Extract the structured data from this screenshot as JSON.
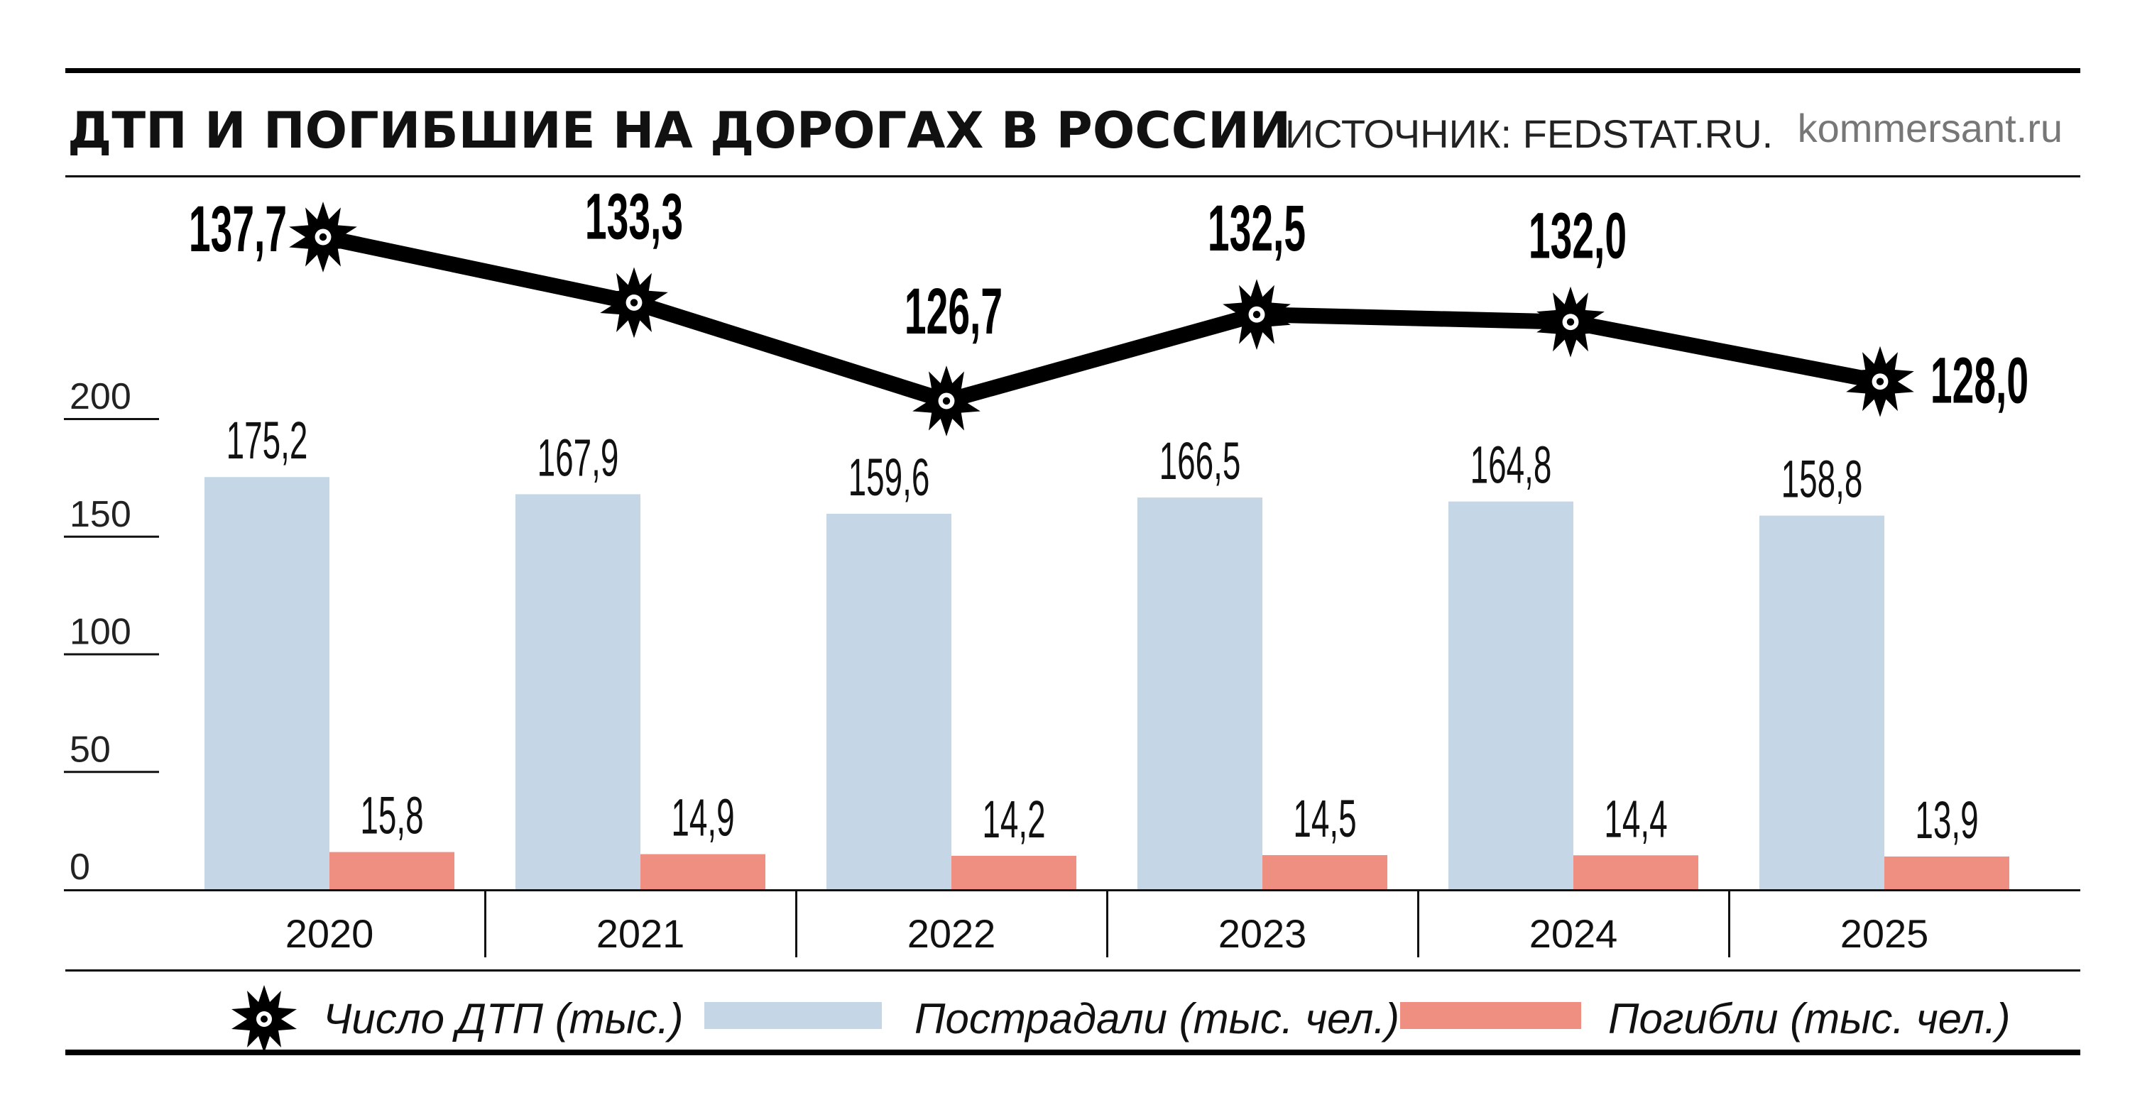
{
  "header": {
    "title": "ДТП И ПОГИБШИЕ НА ДОРОГАХ В РОССИИ",
    "source": "ИСТОЧНИК: FEDSTAT.RU.",
    "brand": "kommersant.ru"
  },
  "colors": {
    "injured": "#c5d7e6",
    "killed": "#ef8f82",
    "accidents": "#000000",
    "text": "#1a1a1a",
    "brand": "#777777"
  },
  "chart_data": {
    "type": "bar",
    "categories": [
      "2020",
      "2021",
      "2022",
      "2023",
      "2024",
      "2025"
    ],
    "ylim": [
      0,
      200
    ],
    "yticks": [
      "200",
      "150",
      "100",
      "50",
      "0"
    ],
    "series": [
      {
        "name": "Пострадали (тыс. чел.)",
        "type": "bar",
        "values": [
          175.2,
          167.9,
          159.6,
          166.5,
          164.8,
          158.8
        ],
        "labels": [
          "175,2",
          "167,9",
          "159,6",
          "166,5",
          "164,8",
          "158,8"
        ]
      },
      {
        "name": "Погибли (тыс. чел.)",
        "type": "bar",
        "values": [
          15.8,
          14.9,
          14.2,
          14.5,
          14.4,
          13.9
        ],
        "labels": [
          "15,8",
          "14,9",
          "14,2",
          "14,5",
          "14,4",
          "13,9"
        ]
      },
      {
        "name": "Число ДТП (тыс.)",
        "type": "line",
        "marker": "star-burst-icon",
        "values": [
          137.7,
          133.3,
          126.7,
          132.5,
          132.0,
          128.0
        ],
        "labels": [
          "137,7",
          "133,3",
          "126,7",
          "132,5",
          "132,0",
          "128,0"
        ]
      }
    ],
    "legend": [
      "Число ДТП (тыс.)",
      "Пострадали (тыс. чел.)",
      "Погибли (тыс. чел.)"
    ],
    "legend_position": "bottom"
  }
}
